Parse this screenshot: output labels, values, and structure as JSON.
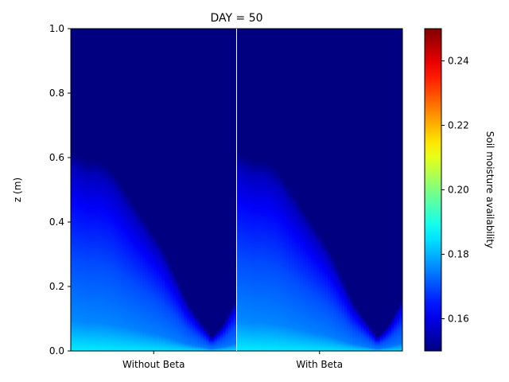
{
  "chart_data": {
    "type": "heatmap",
    "title": "DAY = 50",
    "xlabel": "",
    "ylabel": "z (m)",
    "ylim": [
      0.0,
      1.0
    ],
    "yticks": [
      "0.0",
      "0.2",
      "0.4",
      "0.6",
      "0.8",
      "1.0"
    ],
    "panels": [
      "Without Beta",
      "With Beta"
    ],
    "colorbar": {
      "label": "Soil moisture availability",
      "colormap": "jet",
      "range": [
        0.15,
        0.25
      ],
      "ticks": [
        "0.16",
        "0.18",
        "0.20",
        "0.22",
        "0.24"
      ]
    },
    "front_depth_profile": {
      "x_fraction": [
        0.0,
        0.1,
        0.17,
        0.25,
        0.35,
        0.45,
        0.55,
        0.65,
        0.7,
        0.78,
        0.85,
        0.92,
        1.0
      ],
      "z": [
        0.62,
        0.59,
        0.59,
        0.56,
        0.48,
        0.4,
        0.32,
        0.21,
        0.15,
        0.09,
        0.04,
        0.08,
        0.16
      ]
    },
    "surface_value_left": 0.186,
    "surface_value_right": 0.184
  }
}
